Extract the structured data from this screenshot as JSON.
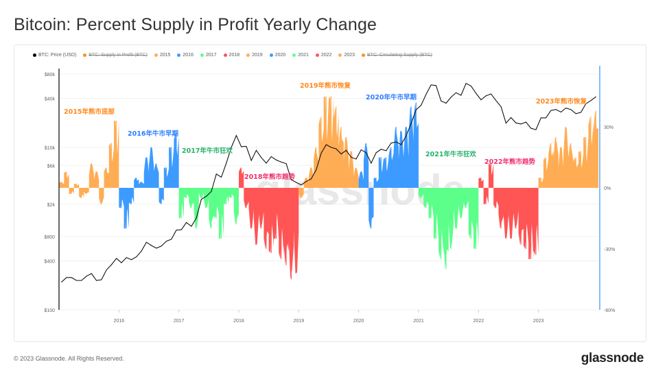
{
  "title": "Bitcoin: Percent Supply in Profit Yearly Change",
  "footer": "© 2023 Glassnode. All Rights Reserved.",
  "logo": "glassnode",
  "watermark": "glassnode",
  "legend": [
    {
      "label": "BTC: Price (USD)",
      "color": "#000000",
      "struck": false
    },
    {
      "label": "BTC: Supply in Profit (BTC)",
      "color": "#f7931a",
      "struck": true
    },
    {
      "label": "2015",
      "color": "#ffad54",
      "struck": false
    },
    {
      "label": "2016",
      "color": "#3d9bff",
      "struck": false
    },
    {
      "label": "2017",
      "color": "#5cff8a",
      "struck": false
    },
    {
      "label": "2018",
      "color": "#ff5555",
      "struck": false
    },
    {
      "label": "2019",
      "color": "#ffad54",
      "struck": false
    },
    {
      "label": "2020",
      "color": "#3d9bff",
      "struck": false
    },
    {
      "label": "2021",
      "color": "#5cff8a",
      "struck": false
    },
    {
      "label": "2022",
      "color": "#ff5555",
      "struck": false
    },
    {
      "label": "2023",
      "color": "#ffad54",
      "struck": false
    },
    {
      "label": "BTC: Circulating Supply (BTC)",
      "color": "#f7931a",
      "struck": true
    }
  ],
  "chart_data": {
    "type": "area",
    "x_ticks": [
      "2016",
      "2017",
      "2018",
      "2019",
      "2020",
      "2021",
      "2022",
      "2023"
    ],
    "y_left": {
      "scale": "log",
      "ticks": [
        "$80k",
        "$40k",
        "$10k",
        "$6k",
        "$2k",
        "$800",
        "$400",
        "$100"
      ],
      "tick_values": [
        80000,
        40000,
        10000,
        6000,
        2000,
        800,
        400,
        100
      ],
      "range": [
        100,
        80000
      ]
    },
    "y_right": {
      "ticks": [
        "30%",
        "0%",
        "-30%",
        "-60%"
      ],
      "tick_values": [
        30,
        0,
        -30,
        -60
      ],
      "range": [
        -60,
        60
      ]
    },
    "grid": true,
    "legend_position": "top",
    "price_series": {
      "name": "BTC: Price (USD)",
      "color": "#000000",
      "frequency": "monthly",
      "start": "2015-01",
      "values": [
        220,
        250,
        250,
        230,
        230,
        260,
        280,
        230,
        235,
        310,
        360,
        430,
        380,
        440,
        415,
        450,
        530,
        680,
        620,
        575,
        610,
        700,
        740,
        960,
        970,
        1190,
        1070,
        1350,
        2300,
        2500,
        2870,
        4700,
        4300,
        6400,
        10000,
        14000,
        10200,
        10300,
        6900,
        9200,
        7500,
        6400,
        7700,
        7000,
        6600,
        6300,
        4000,
        3700,
        3450,
        3800,
        4100,
        5300,
        8500,
        10800,
        10000,
        9600,
        8300,
        9200,
        7550,
        7200,
        9350,
        8600,
        6400,
        8600,
        9500,
        9100,
        11300,
        11700,
        10800,
        13800,
        19700,
        29000,
        33000,
        45000,
        58800,
        57700,
        37300,
        35000,
        41500,
        47100,
        43800,
        61300,
        57000,
        46300,
        38500,
        43200,
        45500,
        37700,
        31800,
        19900,
        23300,
        20000,
        19400,
        20500,
        17200,
        16500,
        23100,
        23100,
        28500,
        29300,
        27200,
        30500,
        29200,
        26000,
        27000,
        34500,
        37700,
        42000
      ]
    },
    "series": [
      {
        "name": "2015",
        "color": "#ffad54",
        "values": [
          3,
          8,
          -3,
          2,
          -5,
          -3,
          12,
          8,
          -8,
          10,
          22,
          33
        ]
      },
      {
        "name": "2016",
        "color": "#3d9bff",
        "values": [
          -10,
          -20,
          -8,
          5,
          3,
          15,
          20,
          12,
          -8,
          10,
          20,
          27
        ]
      },
      {
        "name": "2017",
        "color": "#5cff8a",
        "values": [
          -15,
          -5,
          -10,
          -20,
          -5,
          -10,
          -20,
          -15,
          -25,
          -8,
          -5,
          -18
        ]
      },
      {
        "name": "2018",
        "color": "#ff5555",
        "values": [
          10,
          -10,
          -20,
          -28,
          -20,
          -30,
          -32,
          -25,
          -35,
          -38,
          -45,
          -42
        ]
      },
      {
        "name": "2019",
        "color": "#ffad54",
        "values": [
          -5,
          5,
          10,
          20,
          35,
          45,
          45,
          40,
          30,
          25,
          18,
          10
        ]
      },
      {
        "name": "2020",
        "color": "#3d9bff",
        "values": [
          8,
          22,
          -20,
          5,
          15,
          15,
          20,
          30,
          28,
          30,
          40,
          42
        ]
      },
      {
        "name": "2021",
        "color": "#5cff8a",
        "values": [
          -5,
          -10,
          -15,
          -25,
          -35,
          -40,
          -30,
          -20,
          -15,
          -10,
          -25,
          -30
        ]
      },
      {
        "name": "2022",
        "color": "#ff5555",
        "values": [
          5,
          -8,
          12,
          -10,
          -20,
          -25,
          -25,
          -20,
          -28,
          -30,
          -35,
          -33
        ]
      },
      {
        "name": "2023",
        "color": "#ffad54",
        "values": [
          5,
          15,
          22,
          25,
          20,
          30,
          22,
          15,
          18,
          25,
          35,
          38
        ]
      }
    ],
    "annotations": [
      {
        "text": "2015年熊市底部",
        "color": "#ff8a1f"
      },
      {
        "text": "2016年牛市早期",
        "color": "#2f7fff"
      },
      {
        "text": "2017年牛市狂欢",
        "color": "#25b36b"
      },
      {
        "text": "2018年熊市趋势",
        "color": "#f0306c"
      },
      {
        "text": "2019年熊市恢复",
        "color": "#ff8a1f"
      },
      {
        "text": "2020年牛市早期",
        "color": "#2f7fff"
      },
      {
        "text": "2021年牛市狂欢",
        "color": "#25b36b"
      },
      {
        "text": "2022年熊市趋势",
        "color": "#f0306c"
      },
      {
        "text": "2023年熊市恢复",
        "color": "#ff8a1f"
      }
    ]
  }
}
